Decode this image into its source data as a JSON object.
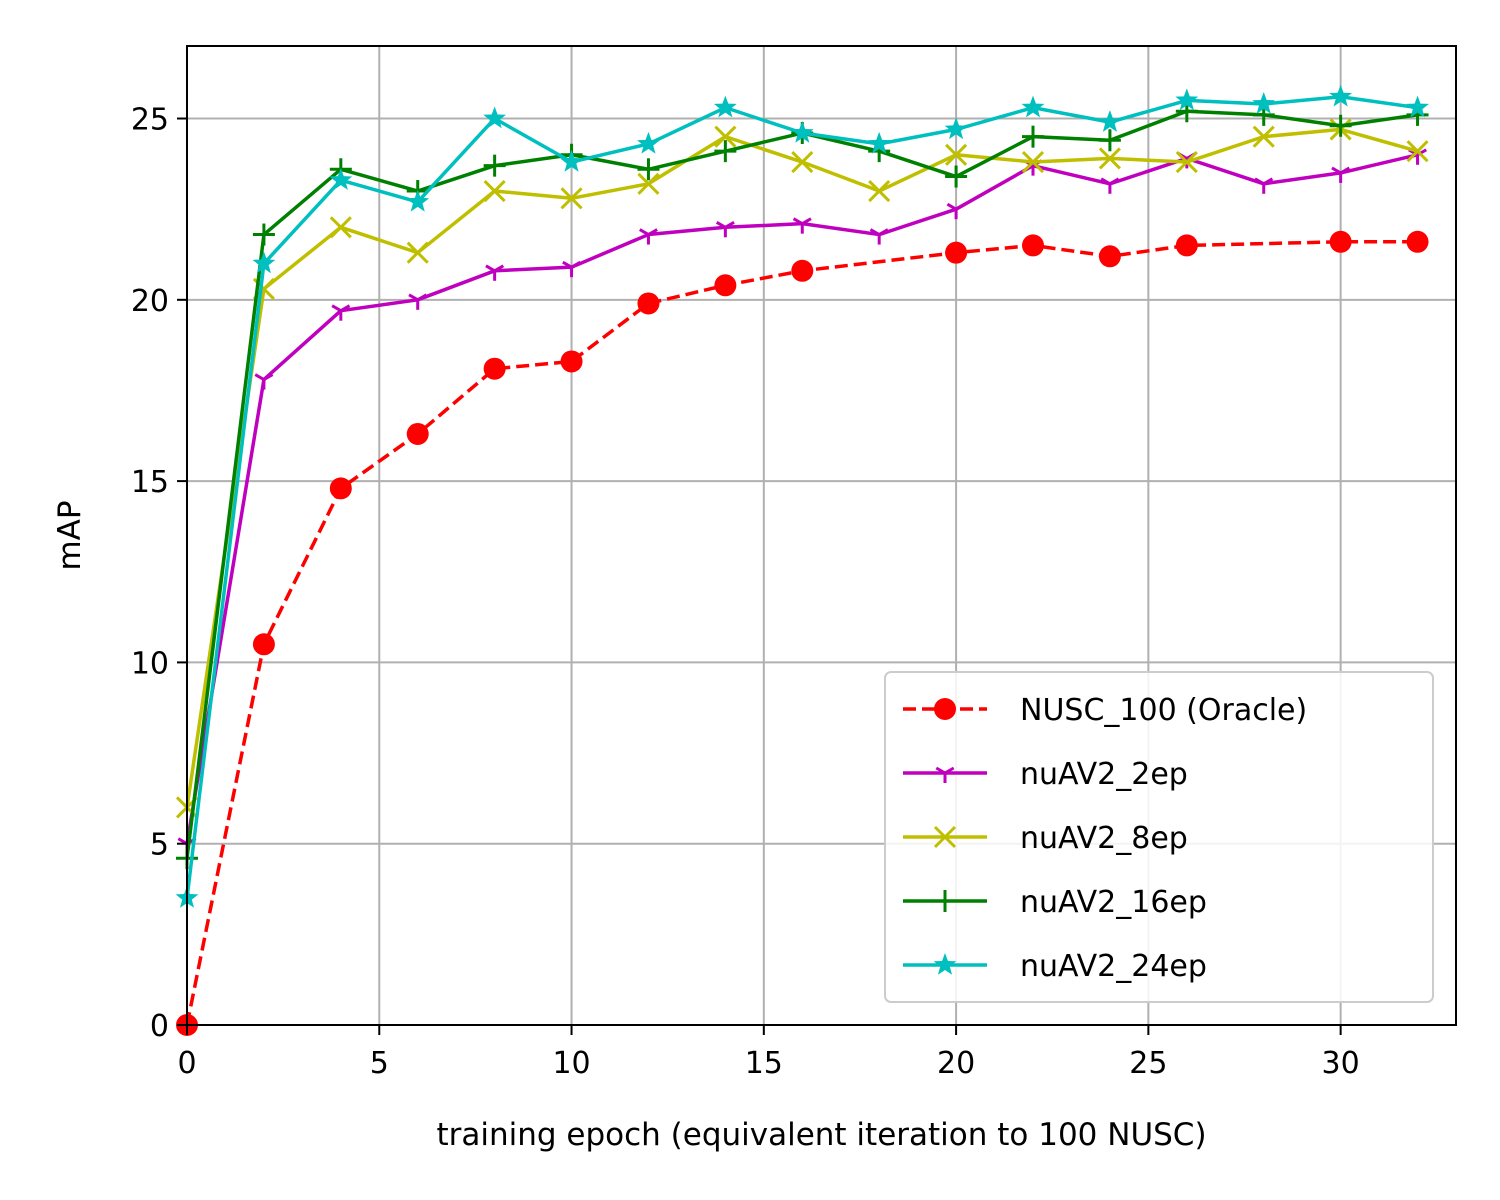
{
  "chart_data": {
    "type": "line",
    "title": "",
    "xlabel": "training epoch (equivalent iteration to 100 NUSC)",
    "ylabel": "mAP",
    "xlim": [
      0,
      33
    ],
    "ylim": [
      0,
      27
    ],
    "xticks": [
      0,
      5,
      10,
      15,
      20,
      25,
      30
    ],
    "yticks": [
      0,
      5,
      10,
      15,
      20,
      25
    ],
    "grid": true,
    "legend_position": "lower-right",
    "series": [
      {
        "name": "NUSC_100 (Oracle)",
        "color": "#ff0000",
        "linestyle": "dashed",
        "marker": "circle",
        "x": [
          0,
          2,
          4,
          6,
          8,
          10,
          12,
          14,
          16,
          20,
          22,
          24,
          26,
          30,
          32
        ],
        "y": [
          0.0,
          10.5,
          14.8,
          16.3,
          18.1,
          18.3,
          19.9,
          20.4,
          20.8,
          21.3,
          21.5,
          21.2,
          21.5,
          21.6,
          21.6
        ]
      },
      {
        "name": "nuAV2_2ep",
        "color": "#bf00bf",
        "linestyle": "solid",
        "marker": "tri_down",
        "x": [
          0,
          2,
          4,
          6,
          8,
          10,
          12,
          14,
          16,
          18,
          20,
          22,
          24,
          26,
          28,
          30,
          32
        ],
        "y": [
          5.0,
          17.8,
          19.7,
          20.0,
          20.8,
          20.9,
          21.8,
          22.0,
          22.1,
          21.8,
          22.5,
          23.7,
          23.2,
          23.9,
          23.2,
          23.5,
          24.0
        ]
      },
      {
        "name": "nuAV2_8ep",
        "color": "#bfbf00",
        "linestyle": "solid",
        "marker": "x",
        "x": [
          0,
          2,
          4,
          6,
          8,
          10,
          12,
          14,
          16,
          18,
          20,
          22,
          24,
          26,
          28,
          30,
          32
        ],
        "y": [
          6.0,
          20.3,
          22.0,
          21.3,
          23.0,
          22.8,
          23.2,
          24.5,
          23.8,
          23.0,
          24.0,
          23.8,
          23.9,
          23.8,
          24.5,
          24.7,
          24.1
        ]
      },
      {
        "name": "nuAV2_16ep",
        "color": "#008000",
        "linestyle": "solid",
        "marker": "plus",
        "x": [
          0,
          2,
          4,
          6,
          8,
          10,
          12,
          14,
          16,
          18,
          20,
          22,
          24,
          26,
          28,
          30,
          32
        ],
        "y": [
          4.6,
          21.8,
          23.6,
          23.0,
          23.7,
          24.0,
          23.6,
          24.1,
          24.6,
          24.1,
          23.4,
          24.5,
          24.4,
          25.2,
          25.1,
          24.8,
          25.1
        ]
      },
      {
        "name": "nuAV2_24ep",
        "color": "#00bfbf",
        "linestyle": "solid",
        "marker": "star",
        "x": [
          0,
          2,
          4,
          6,
          8,
          10,
          12,
          14,
          16,
          18,
          20,
          22,
          24,
          26,
          28,
          30,
          32
        ],
        "y": [
          3.5,
          21.0,
          23.3,
          22.7,
          25.0,
          23.8,
          24.3,
          25.3,
          24.6,
          24.3,
          24.7,
          25.3,
          24.9,
          25.5,
          25.4,
          25.6,
          25.3
        ]
      }
    ]
  }
}
